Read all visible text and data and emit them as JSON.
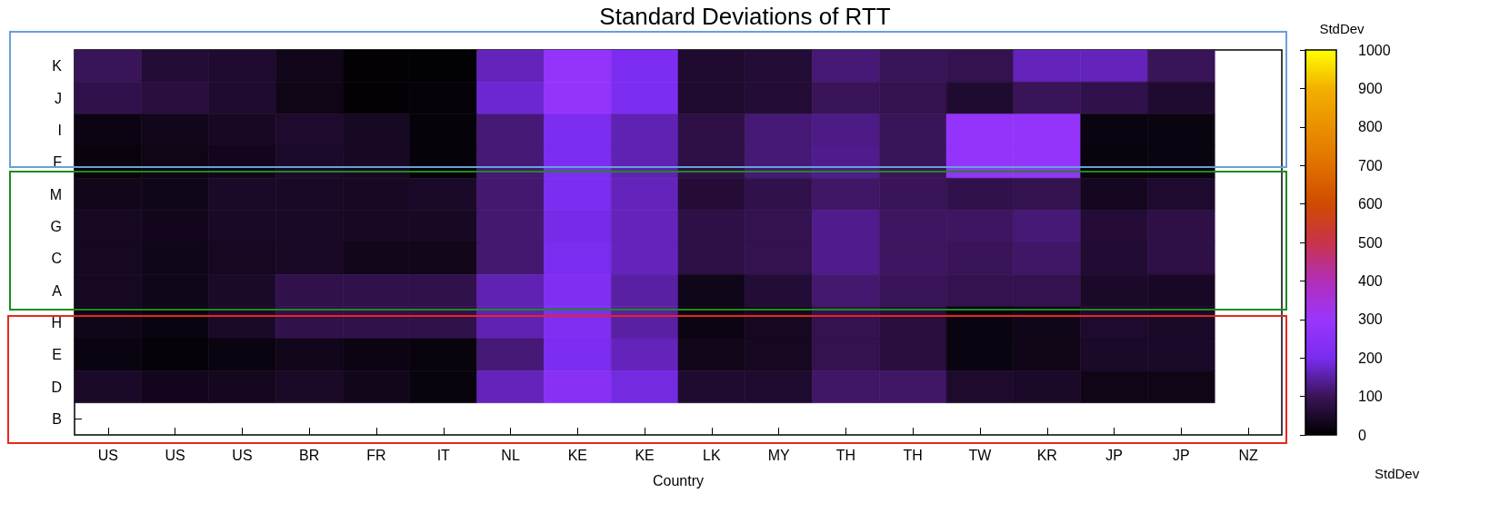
{
  "chart_data": {
    "type": "heatmap",
    "title": "Standard Deviations of RTT",
    "xlabel": "Country",
    "clabel": "StdDev",
    "annotations": [
      "StdDev"
    ],
    "categories": [
      "US",
      "US",
      "US",
      "BR",
      "FR",
      "IT",
      "NL",
      "KE",
      "KE",
      "LK",
      "MY",
      "TH",
      "TH",
      "TW",
      "KR",
      "JP",
      "JP",
      "NZ"
    ],
    "y_categories": [
      "K",
      "J",
      "I",
      "F",
      "M",
      "G",
      "C",
      "A",
      "H",
      "E",
      "D",
      "B"
    ],
    "cells": [
      [
        100,
        60,
        55,
        30,
        5,
        3,
        165,
        280,
        210,
        55,
        60,
        120,
        100,
        90,
        165,
        165,
        100,
        null
      ],
      [
        85,
        70,
        55,
        25,
        7,
        10,
        180,
        280,
        205,
        55,
        60,
        100,
        90,
        55,
        100,
        85,
        55,
        null
      ],
      [
        20,
        30,
        40,
        50,
        40,
        10,
        120,
        205,
        160,
        80,
        120,
        130,
        100,
        280,
        280,
        18,
        18,
        null
      ],
      [
        15,
        25,
        32,
        48,
        40,
        10,
        120,
        210,
        160,
        80,
        120,
        135,
        100,
        280,
        280,
        15,
        18,
        null
      ],
      [
        30,
        28,
        45,
        43,
        40,
        45,
        115,
        205,
        165,
        62,
        85,
        110,
        100,
        85,
        90,
        35,
        52,
        null
      ],
      [
        38,
        32,
        43,
        43,
        40,
        40,
        115,
        195,
        165,
        80,
        90,
        135,
        105,
        105,
        120,
        62,
        80,
        null
      ],
      [
        38,
        28,
        38,
        43,
        30,
        30,
        115,
        200,
        165,
        80,
        90,
        135,
        105,
        100,
        110,
        58,
        80,
        null
      ],
      [
        38,
        28,
        45,
        85,
        85,
        85,
        160,
        220,
        150,
        28,
        60,
        115,
        100,
        90,
        90,
        45,
        42,
        null
      ],
      [
        28,
        18,
        45,
        85,
        85,
        85,
        160,
        220,
        150,
        22,
        38,
        90,
        70,
        18,
        28,
        52,
        45,
        null
      ],
      [
        18,
        10,
        18,
        30,
        20,
        15,
        120,
        210,
        165,
        30,
        38,
        90,
        70,
        18,
        25,
        45,
        45,
        null
      ],
      [
        45,
        32,
        34,
        46,
        30,
        15,
        165,
        245,
        190,
        55,
        52,
        110,
        110,
        50,
        45,
        25,
        25,
        null
      ],
      [
        null,
        null,
        null,
        null,
        null,
        null,
        null,
        null,
        null,
        null,
        null,
        null,
        null,
        null,
        null,
        null,
        null,
        null
      ]
    ],
    "clim": [
      0,
      1000
    ],
    "cticks": [
      0,
      100,
      200,
      300,
      400,
      500,
      600,
      700,
      800,
      900,
      1000
    ]
  }
}
